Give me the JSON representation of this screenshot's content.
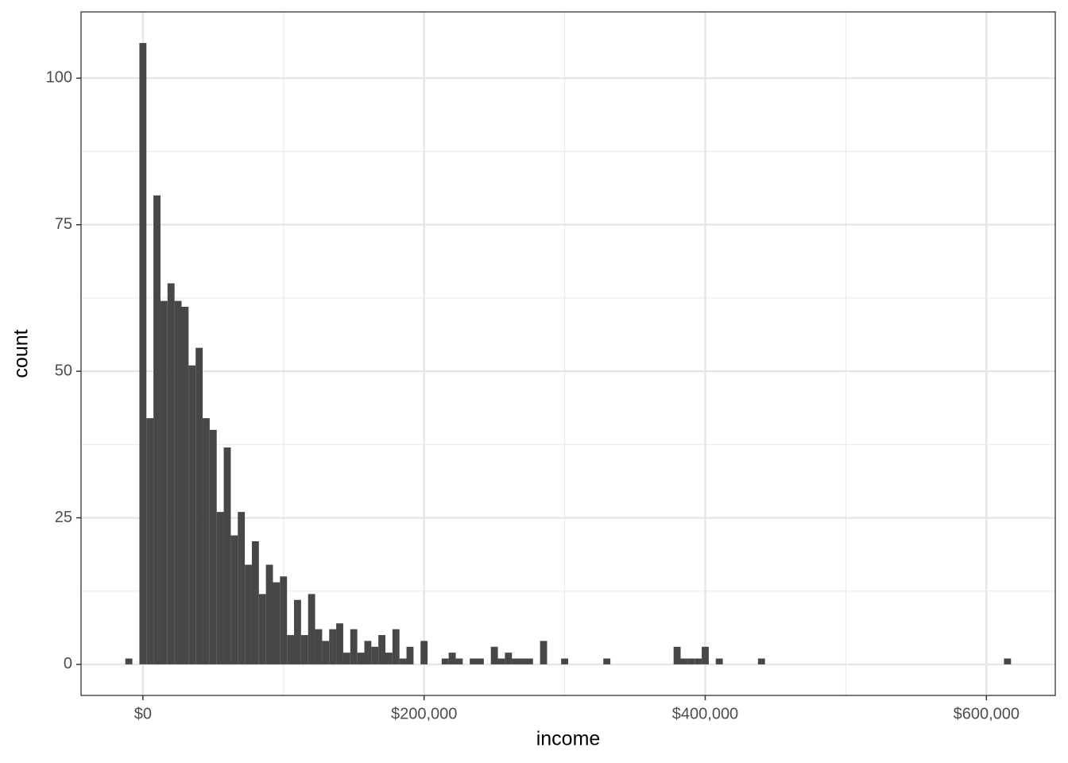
{
  "chart_data": {
    "type": "histogram",
    "x_label": "income",
    "y_label": "count",
    "bins": [
      -12500,
      -7500,
      -2500,
      2500,
      7500,
      12500,
      17500,
      22500,
      27500,
      32500,
      37500,
      42500,
      47500,
      52500,
      57500,
      62500,
      67500,
      72500,
      77500,
      82500,
      87500,
      92500,
      97500,
      102500,
      107500,
      112500,
      117500,
      122500,
      127500,
      132500,
      137500,
      142500,
      147500,
      152500,
      157500,
      162500,
      167500,
      172500,
      177500,
      182500,
      187500,
      192500,
      197500,
      202500,
      207500,
      212500,
      217500,
      222500,
      227500,
      232500,
      237500,
      242500,
      247500,
      252500,
      257500,
      262500,
      267500,
      272500,
      277500,
      282500,
      287500,
      292500,
      297500,
      302500,
      307500,
      312500,
      317500,
      322500,
      327500,
      332500,
      337500,
      342500,
      347500,
      352500,
      357500,
      362500,
      367500,
      372500,
      377500,
      382500,
      387500,
      392500,
      397500,
      402500,
      407500,
      412500,
      417500,
      422500,
      427500,
      432500,
      437500,
      442500,
      447500,
      452500,
      457500,
      462500,
      467500,
      472500,
      477500,
      482500,
      487500,
      492500,
      497500,
      502500,
      507500,
      512500,
      517500,
      522500,
      527500,
      532500,
      537500,
      542500,
      547500,
      552500,
      557500,
      562500,
      567500,
      572500,
      577500,
      582500,
      587500,
      592500,
      597500,
      602500,
      607500,
      612500,
      617500
    ],
    "values": [
      1,
      0,
      106,
      42,
      80,
      62,
      65,
      62,
      61,
      51,
      54,
      42,
      40,
      26,
      37,
      22,
      26,
      17,
      21,
      12,
      17,
      14,
      15,
      5,
      11,
      5,
      12,
      6,
      4,
      6,
      7,
      2,
      6,
      2,
      4,
      3,
      5,
      2,
      6,
      1,
      3,
      0,
      4,
      0,
      0,
      1,
      2,
      1,
      0,
      1,
      1,
      0,
      3,
      1,
      2,
      1,
      1,
      1,
      0,
      4,
      0,
      0,
      1,
      0,
      0,
      0,
      0,
      0,
      1,
      0,
      0,
      0,
      0,
      0,
      0,
      0,
      0,
      0,
      3,
      1,
      1,
      1,
      3,
      0,
      1,
      0,
      0,
      0,
      0,
      0,
      1,
      0,
      0,
      0,
      0,
      0,
      0,
      0,
      0,
      0,
      0,
      0,
      0,
      0,
      0,
      0,
      0,
      0,
      0,
      0,
      0,
      0,
      0,
      0,
      0,
      0,
      0,
      0,
      0,
      0,
      0,
      0,
      0,
      0,
      0,
      1
    ],
    "color": "#474747",
    "xlim": [
      -44000,
      649000
    ],
    "ylim": [
      -5.3,
      111.3
    ],
    "xticks": [
      {
        "value": 0,
        "label": "$0"
      },
      {
        "value": 200000,
        "label": "$200,000"
      },
      {
        "value": 400000,
        "label": "$400,000"
      },
      {
        "value": 600000,
        "label": "$600,000"
      }
    ],
    "yticks": [
      0,
      25,
      50,
      75,
      100
    ],
    "x_minor_ticks": [
      100000,
      300000,
      500000
    ],
    "y_minor_ticks": [
      12.5,
      37.5,
      62.5,
      87.5
    ],
    "grid": true
  }
}
